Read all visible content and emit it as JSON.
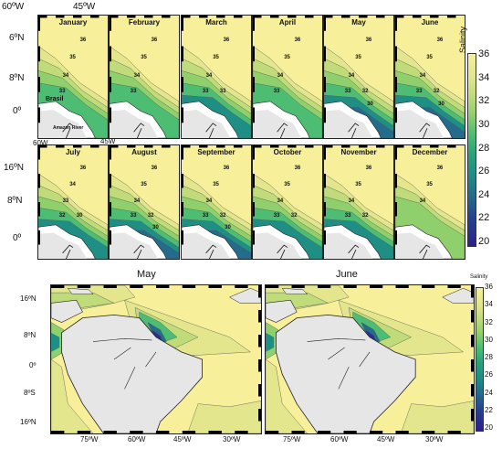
{
  "colors": {
    "land": "#e6e6e6",
    "coast": "#222222",
    "sal36": "#f7ef9a",
    "sal35": "#e3e68c",
    "sal34": "#bfdb7a",
    "sal33": "#8fcf6c",
    "sal32": "#4dbd73",
    "sal30": "#1f8f86",
    "sal28": "#246b8c",
    "sal24": "#2b2f8f"
  },
  "colorbar": {
    "title": "Salinity",
    "ticks": [
      "36",
      "34",
      "32",
      "30",
      "28",
      "26",
      "24",
      "22",
      "20"
    ]
  },
  "colorbar_small": {
    "title": "Salinity",
    "ticks": [
      "36",
      "34",
      "32",
      "30",
      "28",
      "26",
      "24",
      "22",
      "20"
    ]
  },
  "top_grid": {
    "lon_labels": [
      "60ºW",
      "45ºW"
    ],
    "lat_labels_row1": [
      "6ºN",
      "8ºN",
      "0º"
    ],
    "lon_labels_row2": [
      "60W",
      "45W"
    ],
    "lat_labels_row2": [
      "16ºN",
      "8ºN",
      "0º"
    ],
    "annot_brasil": "Brasil",
    "annot_amazon": "Amazon River",
    "months": [
      {
        "name": "January",
        "contours": [
          "36",
          "35",
          "34",
          "33"
        ]
      },
      {
        "name": "February",
        "contours": [
          "36",
          "35",
          "34",
          "33"
        ]
      },
      {
        "name": "March",
        "contours": [
          "36",
          "35",
          "34",
          "33",
          "33"
        ]
      },
      {
        "name": "April",
        "contours": [
          "36",
          "35",
          "34",
          "33"
        ]
      },
      {
        "name": "May",
        "contours": [
          "36",
          "35",
          "34",
          "33",
          "32",
          "30"
        ]
      },
      {
        "name": "June",
        "contours": [
          "36",
          "35",
          "34",
          "33",
          "32",
          "30"
        ]
      },
      {
        "name": "July",
        "contours": [
          "36",
          "34",
          "33",
          "32",
          "30"
        ]
      },
      {
        "name": "August",
        "contours": [
          "36",
          "35",
          "34",
          "33",
          "32",
          "30"
        ]
      },
      {
        "name": "September",
        "contours": [
          "36",
          "35",
          "34",
          "33",
          "32",
          "30"
        ]
      },
      {
        "name": "October",
        "contours": [
          "36",
          "35",
          "34",
          "33",
          "32"
        ]
      },
      {
        "name": "November",
        "contours": [
          "36",
          "35",
          "34",
          "33",
          "32"
        ]
      },
      {
        "name": "December",
        "contours": [
          "36",
          "35",
          "34"
        ]
      }
    ]
  },
  "bottom": {
    "panels": [
      {
        "title": "May"
      },
      {
        "title": "June"
      }
    ],
    "lat_labels": [
      "16ºN",
      "8ºN",
      "0º",
      "8ºS",
      "16ºN"
    ],
    "lon_labels": [
      "75ºW",
      "60ºW",
      "45ºW",
      "30ºW"
    ]
  }
}
